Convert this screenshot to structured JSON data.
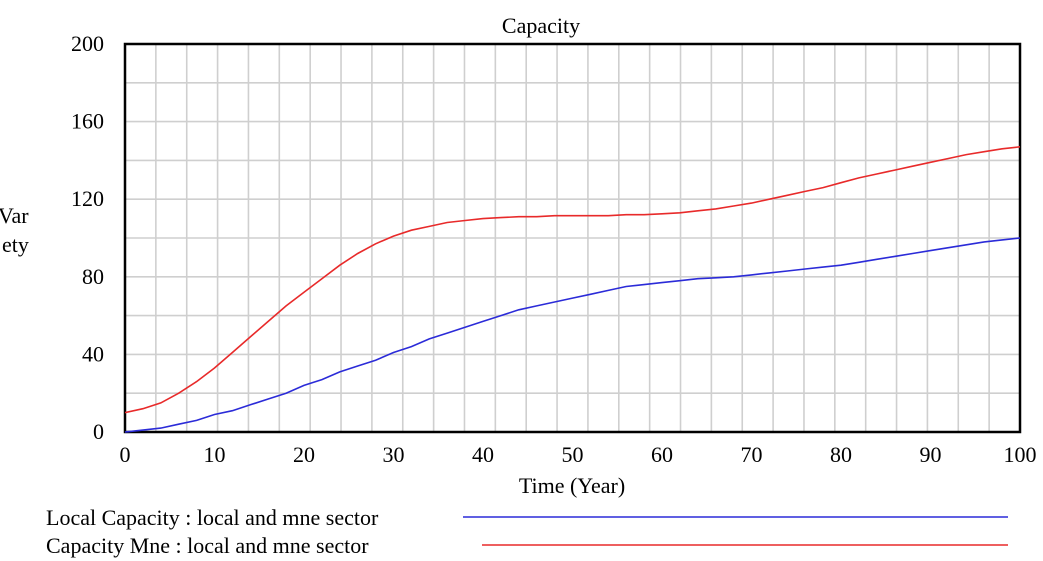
{
  "chart_data": {
    "type": "line",
    "title": "Capacity",
    "xlabel": "Time (Year)",
    "ylabel": "Var\nety",
    "xlim": [
      0,
      100
    ],
    "ylim": [
      0,
      200
    ],
    "x_ticks": [
      0,
      10,
      20,
      30,
      40,
      50,
      60,
      70,
      80,
      90,
      100
    ],
    "y_ticks": [
      0,
      40,
      80,
      120,
      160,
      200
    ],
    "grid": true,
    "legend_position": "bottom",
    "series": [
      {
        "name": "Local Capacity : local and mne sector",
        "color": "#2b2bd8",
        "x": [
          0,
          2,
          4,
          6,
          8,
          10,
          12,
          14,
          16,
          18,
          20,
          22,
          24,
          26,
          28,
          30,
          32,
          34,
          36,
          38,
          40,
          42,
          44,
          46,
          48,
          50,
          52,
          54,
          56,
          58,
          60,
          62,
          64,
          66,
          68,
          70,
          72,
          74,
          76,
          78,
          80,
          82,
          84,
          86,
          88,
          90,
          92,
          94,
          96,
          98,
          100
        ],
        "y": [
          0,
          1,
          2,
          4,
          6,
          9,
          11,
          14,
          17,
          20,
          24,
          27,
          31,
          34,
          37,
          41,
          44,
          48,
          51,
          54,
          57,
          60,
          63,
          65,
          67,
          69,
          71,
          73,
          75,
          76,
          77,
          78,
          79,
          79.5,
          80,
          81,
          82,
          83,
          84,
          85,
          86,
          87.5,
          89,
          90.5,
          92,
          93.5,
          95,
          96.5,
          98,
          99,
          100
        ]
      },
      {
        "name": "Capacity Mne : local and mne sector",
        "color": "#e82a2a",
        "x": [
          0,
          2,
          4,
          6,
          8,
          10,
          12,
          14,
          16,
          18,
          20,
          22,
          24,
          26,
          28,
          30,
          32,
          34,
          36,
          38,
          40,
          42,
          44,
          46,
          48,
          50,
          52,
          54,
          56,
          58,
          60,
          62,
          64,
          66,
          68,
          70,
          72,
          74,
          76,
          78,
          80,
          82,
          84,
          86,
          88,
          90,
          92,
          94,
          96,
          98,
          100
        ],
        "y": [
          10,
          12,
          15,
          20,
          26,
          33,
          41,
          49,
          57,
          65,
          72,
          79,
          86,
          92,
          97,
          101,
          104,
          106,
          108,
          109,
          110,
          110.5,
          111,
          111,
          111.5,
          111.5,
          111.5,
          111.5,
          112,
          112,
          112.5,
          113,
          114,
          115,
          116.5,
          118,
          120,
          122,
          124,
          126,
          128.5,
          131,
          133,
          135,
          137,
          139,
          141,
          143,
          144.5,
          146,
          147
        ]
      }
    ]
  }
}
